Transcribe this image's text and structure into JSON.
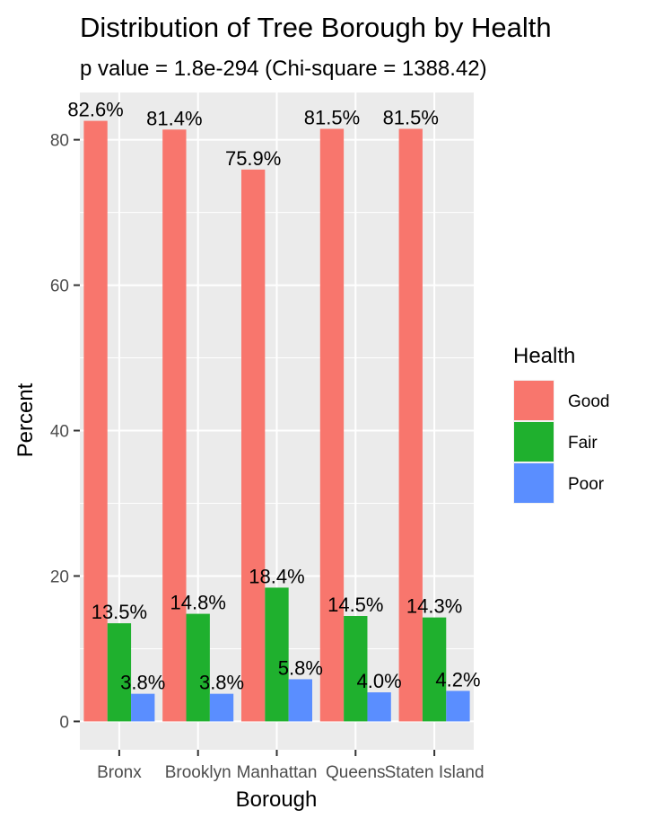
{
  "chart_data": {
    "type": "bar",
    "title": "Distribution of Tree Borough by Health",
    "subtitle": "p value = 1.8e-294 (Chi-square = 1388.42)",
    "xlabel": "Borough",
    "ylabel": "Percent",
    "categories": [
      "Bronx",
      "Brooklyn",
      "Manhattan",
      "Queens",
      "Staten Island"
    ],
    "series": [
      {
        "name": "Good",
        "color": "#F8766D",
        "values": [
          82.6,
          81.4,
          75.9,
          81.5,
          81.5
        ],
        "labels": [
          "82.6%",
          "81.4%",
          "75.9%",
          "81.5%",
          "81.5%"
        ]
      },
      {
        "name": "Fair",
        "color": "#1FB02E",
        "values": [
          13.5,
          14.8,
          18.4,
          14.5,
          14.3
        ],
        "labels": [
          "13.5%",
          "14.8%",
          "18.4%",
          "14.5%",
          "14.3%"
        ]
      },
      {
        "name": "Poor",
        "color": "#5A8EFF",
        "values": [
          3.8,
          3.8,
          5.8,
          4.0,
          4.2
        ],
        "labels": [
          "3.8%",
          "3.8%",
          "5.8%",
          "4.0%",
          "4.2%"
        ]
      }
    ],
    "yticks": [
      0,
      20,
      40,
      60,
      80
    ],
    "ylim": [
      -3.9,
      86.5
    ],
    "grid": true,
    "legend": {
      "title": "Health",
      "position": "right"
    }
  }
}
